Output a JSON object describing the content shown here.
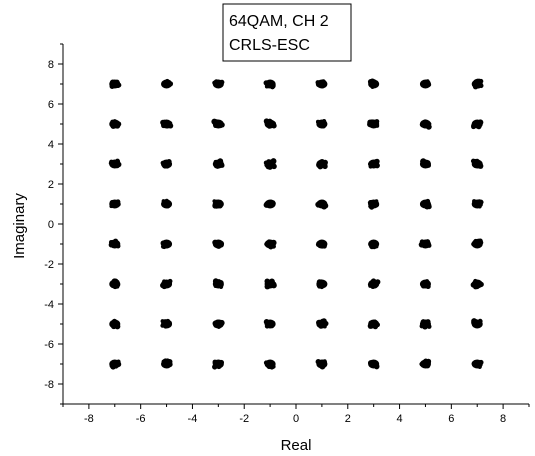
{
  "chart_data": {
    "type": "scatter",
    "title": [
      "64QAM, CH 2",
      "CRLS-ESC"
    ],
    "xlabel": "Real",
    "ylabel": "Imaginary",
    "xlim": [
      -9,
      9
    ],
    "ylim": [
      -9,
      9
    ],
    "xticks": [
      -8,
      -6,
      -4,
      -2,
      0,
      2,
      4,
      6,
      8
    ],
    "yticks": [
      -8,
      -6,
      -4,
      -2,
      0,
      2,
      4,
      6,
      8
    ],
    "grid": false,
    "legend": "none",
    "marker_color": "#000000",
    "constellation_levels": [
      -7,
      -5,
      -3,
      -1,
      1,
      3,
      5,
      7
    ],
    "points_note_free": true,
    "series": [
      {
        "x": [
          -7,
          -5,
          -3,
          -1,
          1,
          3,
          5,
          7,
          -7,
          -5,
          -3,
          -1,
          1,
          3,
          5,
          7,
          -7,
          -5,
          -3,
          -1,
          1,
          3,
          5,
          7,
          -7,
          -5,
          -3,
          -1,
          1,
          3,
          5,
          7,
          -7,
          -5,
          -3,
          -1,
          1,
          3,
          5,
          7,
          -7,
          -5,
          -3,
          -1,
          1,
          3,
          5,
          7,
          -7,
          -5,
          -3,
          -1,
          1,
          3,
          5,
          7,
          -7,
          -5,
          -3,
          -1,
          1,
          3,
          5,
          7
        ],
        "y": [
          7,
          7,
          7,
          7,
          7,
          7,
          7,
          7,
          5,
          5,
          5,
          5,
          5,
          5,
          5,
          5,
          3,
          3,
          3,
          3,
          3,
          3,
          3,
          3,
          1,
          1,
          1,
          1,
          1,
          1,
          1,
          1,
          -1,
          -1,
          -1,
          -1,
          -1,
          -1,
          -1,
          -1,
          -3,
          -3,
          -3,
          -3,
          -3,
          -3,
          -3,
          -3,
          -5,
          -5,
          -5,
          -5,
          -5,
          -5,
          -5,
          -5,
          -7,
          -7,
          -7,
          -7,
          -7,
          -7,
          -7,
          -7
        ]
      }
    ]
  }
}
